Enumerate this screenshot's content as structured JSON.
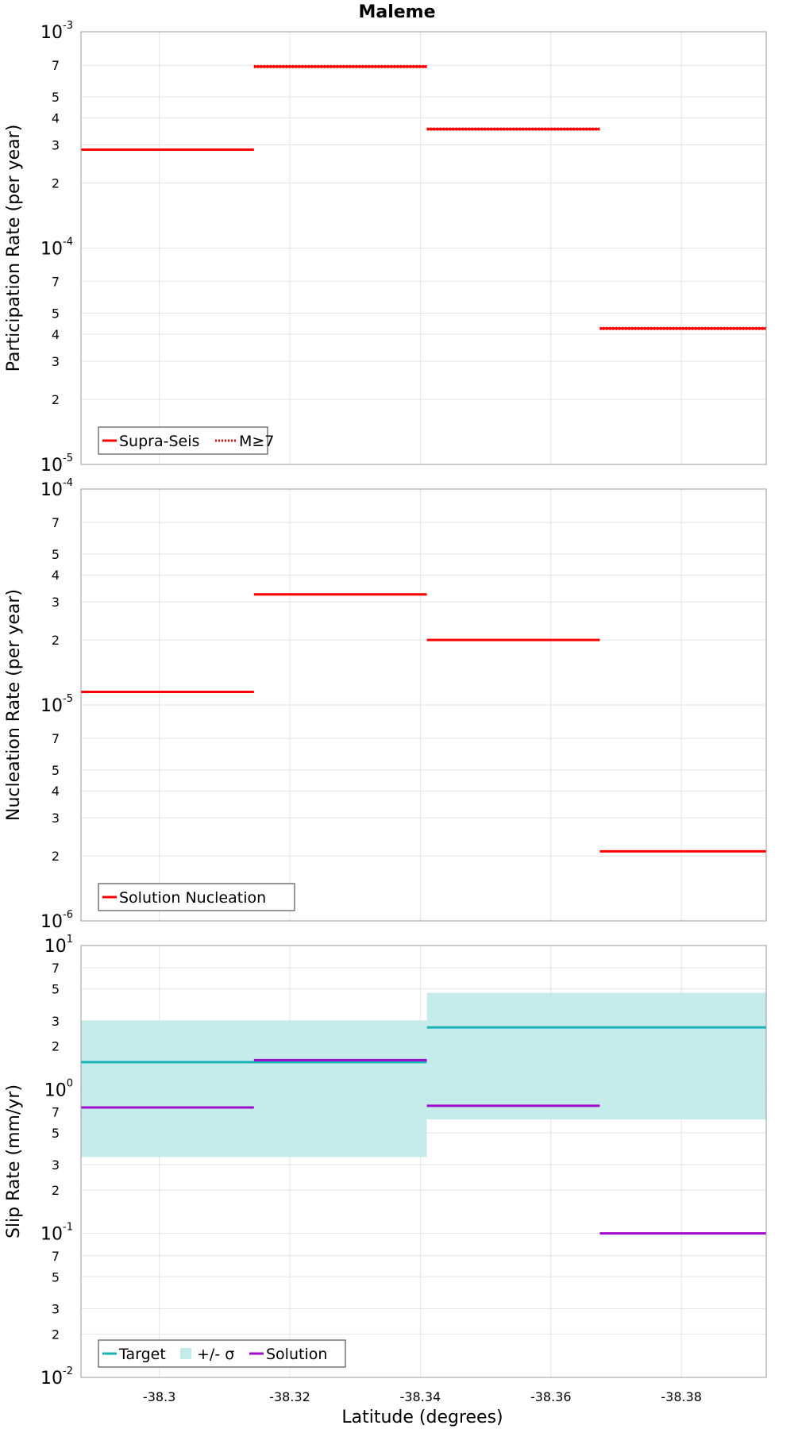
{
  "title": "Maleme",
  "xlabel": "Latitude (degrees)",
  "x_ticks": [
    "-38.3",
    "-38.32",
    "-38.34",
    "-38.36",
    "-38.38"
  ],
  "colors": {
    "red": "#ff0000",
    "target": "#1ab3b3",
    "band": "#c2ebea",
    "solution": "#a00ccc",
    "grid": "#e4e4e4",
    "frame": "#999999"
  },
  "chart_data": [
    {
      "type": "line",
      "ylabel": "Participation Rate (per year)",
      "yscale": "log",
      "ylim": [
        1e-05,
        0.001
      ],
      "xlim": [
        -38.288,
        -38.393
      ],
      "legend": {
        "position": "bottom-left",
        "entries": [
          {
            "name": "Supra-Seis",
            "style": "solid"
          },
          {
            "name": "M≥7",
            "style": "dotted"
          }
        ]
      },
      "y_ticks": [
        {
          "v": 1e-05,
          "base": "10",
          "exp": "-5"
        },
        {
          "v": 2e-05,
          "t": "2"
        },
        {
          "v": 3e-05,
          "t": "3"
        },
        {
          "v": 4e-05,
          "t": "4"
        },
        {
          "v": 5e-05,
          "t": "5"
        },
        {
          "v": 7e-05,
          "t": "7"
        },
        {
          "v": 0.0001,
          "base": "10",
          "exp": "-4"
        },
        {
          "v": 0.0002,
          "t": "2"
        },
        {
          "v": 0.0003,
          "t": "3"
        },
        {
          "v": 0.0004,
          "t": "4"
        },
        {
          "v": 0.0005,
          "t": "5"
        },
        {
          "v": 0.0007,
          "t": "7"
        },
        {
          "v": 0.001,
          "base": "10",
          "exp": "-3"
        }
      ],
      "series": [
        {
          "name": "Supra-Seis",
          "color": "#ff0000",
          "style": "solid",
          "segments": [
            {
              "x0": -38.288,
              "x1": -38.3145,
              "y": 0.000285
            },
            {
              "x0": -38.3145,
              "x1": -38.341,
              "y": 0.00069
            },
            {
              "x0": -38.341,
              "x1": -38.3675,
              "y": 0.000355
            },
            {
              "x0": -38.3675,
              "x1": -38.393,
              "y": 4.25e-05
            }
          ]
        },
        {
          "name": "M≥7",
          "color": "#ff0000",
          "style": "dotted",
          "segments": [
            {
              "x0": -38.3145,
              "x1": -38.341,
              "y": 0.00069
            },
            {
              "x0": -38.341,
              "x1": -38.3675,
              "y": 0.000355
            },
            {
              "x0": -38.3675,
              "x1": -38.393,
              "y": 4.25e-05
            }
          ]
        }
      ]
    },
    {
      "type": "line",
      "ylabel": "Nucleation Rate (per year)",
      "yscale": "log",
      "ylim": [
        1e-06,
        0.0001
      ],
      "xlim": [
        -38.288,
        -38.393
      ],
      "legend": {
        "position": "bottom-left",
        "entries": [
          {
            "name": "Solution Nucleation",
            "style": "solid"
          }
        ]
      },
      "y_ticks": [
        {
          "v": 1e-06,
          "base": "10",
          "exp": "-6"
        },
        {
          "v": 2e-06,
          "t": "2"
        },
        {
          "v": 3e-06,
          "t": "3"
        },
        {
          "v": 4e-06,
          "t": "4"
        },
        {
          "v": 5e-06,
          "t": "5"
        },
        {
          "v": 7e-06,
          "t": "7"
        },
        {
          "v": 1e-05,
          "base": "10",
          "exp": "-5"
        },
        {
          "v": 2e-05,
          "t": "2"
        },
        {
          "v": 3e-05,
          "t": "3"
        },
        {
          "v": 4e-05,
          "t": "4"
        },
        {
          "v": 5e-05,
          "t": "5"
        },
        {
          "v": 7e-05,
          "t": "7"
        },
        {
          "v": 0.0001,
          "base": "10",
          "exp": "-4"
        }
      ],
      "series": [
        {
          "name": "Solution Nucleation",
          "color": "#ff0000",
          "style": "solid",
          "segments": [
            {
              "x0": -38.288,
              "x1": -38.3145,
              "y": 1.15e-05
            },
            {
              "x0": -38.3145,
              "x1": -38.341,
              "y": 3.25e-05
            },
            {
              "x0": -38.341,
              "x1": -38.3675,
              "y": 2e-05
            },
            {
              "x0": -38.3675,
              "x1": -38.393,
              "y": 2.1e-06
            }
          ]
        }
      ]
    },
    {
      "type": "line",
      "ylabel": "Slip Rate (mm/yr)",
      "yscale": "log",
      "ylim": [
        0.01,
        10
      ],
      "xlim": [
        -38.288,
        -38.393
      ],
      "legend": {
        "position": "bottom-left",
        "entries": [
          {
            "name": "Target",
            "style": "solid"
          },
          {
            "name": "+/- σ",
            "style": "band"
          },
          {
            "name": "Solution",
            "style": "solid"
          }
        ]
      },
      "y_ticks": [
        {
          "v": 0.01,
          "base": "10",
          "exp": "-2"
        },
        {
          "v": 0.02,
          "t": "2"
        },
        {
          "v": 0.03,
          "t": "3"
        },
        {
          "v": 0.05,
          "t": "5"
        },
        {
          "v": 0.07,
          "t": "7"
        },
        {
          "v": 0.1,
          "base": "10",
          "exp": "-1"
        },
        {
          "v": 0.2,
          "t": "2"
        },
        {
          "v": 0.3,
          "t": "3"
        },
        {
          "v": 0.5,
          "t": "5"
        },
        {
          "v": 0.7,
          "t": "7"
        },
        {
          "v": 1,
          "base": "10",
          "exp": "0"
        },
        {
          "v": 2,
          "t": "2"
        },
        {
          "v": 3,
          "t": "3"
        },
        {
          "v": 5,
          "t": "5"
        },
        {
          "v": 7,
          "t": "7"
        },
        {
          "v": 10,
          "base": "10",
          "exp": "1"
        }
      ],
      "bands": [
        {
          "name": "+/- σ",
          "color": "#c2ebea",
          "segments": [
            {
              "x0": -38.288,
              "x1": -38.341,
              "y0": 0.34,
              "y1": 3.0
            },
            {
              "x0": -38.341,
              "x1": -38.393,
              "y0": 0.62,
              "y1": 4.7
            }
          ]
        }
      ],
      "series": [
        {
          "name": "Target",
          "color": "#1ab3b3",
          "style": "solid",
          "segments": [
            {
              "x0": -38.288,
              "x1": -38.341,
              "y": 1.55
            },
            {
              "x0": -38.341,
              "x1": -38.393,
              "y": 2.7
            }
          ]
        },
        {
          "name": "Solution",
          "color": "#a00ccc",
          "style": "solid",
          "segments": [
            {
              "x0": -38.288,
              "x1": -38.3145,
              "y": 0.75
            },
            {
              "x0": -38.3145,
              "x1": -38.341,
              "y": 1.6
            },
            {
              "x0": -38.341,
              "x1": -38.3675,
              "y": 0.77
            },
            {
              "x0": -38.3675,
              "x1": -38.393,
              "y": 0.1
            }
          ]
        }
      ]
    }
  ]
}
